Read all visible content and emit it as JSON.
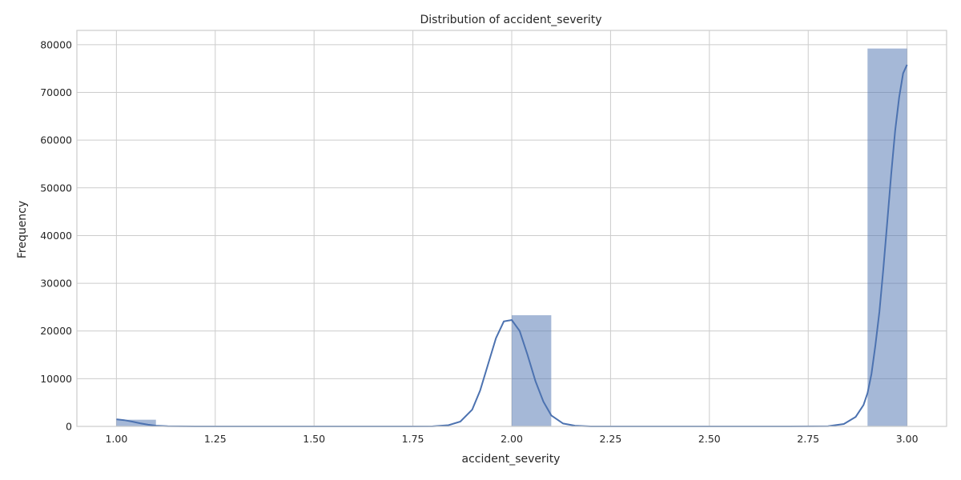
{
  "chart_data": {
    "type": "bar",
    "title": "Distribution of accident_severity",
    "xlabel": "accident_severity",
    "ylabel": "Frequency",
    "xlim": [
      0.9,
      3.1
    ],
    "ylim": [
      0,
      83000
    ],
    "xticks": [
      1.0,
      1.25,
      1.5,
      1.75,
      2.0,
      2.25,
      2.5,
      2.75,
      3.0
    ],
    "xtick_labels": [
      "1.00",
      "1.25",
      "1.50",
      "1.75",
      "2.00",
      "2.25",
      "2.50",
      "2.75",
      "3.00"
    ],
    "yticks": [
      0,
      10000,
      20000,
      30000,
      40000,
      50000,
      60000,
      70000,
      80000
    ],
    "ytick_labels": [
      "0",
      "10000",
      "20000",
      "30000",
      "40000",
      "50000",
      "60000",
      "70000",
      "80000"
    ],
    "grid": true,
    "bins": [
      {
        "start": 1.0,
        "end": 1.1,
        "count": 1400
      },
      {
        "start": 2.0,
        "end": 2.1,
        "count": 23300
      },
      {
        "start": 2.9,
        "end": 3.0,
        "count": 79200
      }
    ],
    "kde": {
      "x": [
        1.0,
        1.02,
        1.04,
        1.06,
        1.08,
        1.1,
        1.13,
        1.16,
        1.2,
        1.3,
        1.5,
        1.7,
        1.8,
        1.84,
        1.87,
        1.9,
        1.92,
        1.94,
        1.96,
        1.98,
        2.0,
        2.02,
        2.04,
        2.06,
        2.08,
        2.1,
        2.13,
        2.16,
        2.2,
        2.3,
        2.5,
        2.7,
        2.8,
        2.84,
        2.87,
        2.89,
        2.9,
        2.91,
        2.92,
        2.93,
        2.94,
        2.95,
        2.96,
        2.97,
        2.98,
        2.99,
        3.0
      ],
      "y": [
        1500,
        1300,
        1000,
        650,
        350,
        150,
        40,
        10,
        0,
        0,
        0,
        0,
        20,
        250,
        1000,
        3500,
        7500,
        13000,
        18500,
        22000,
        22300,
        20000,
        15000,
        9500,
        5200,
        2300,
        600,
        150,
        0,
        0,
        0,
        0,
        30,
        500,
        2000,
        4500,
        7000,
        11000,
        17000,
        24000,
        33000,
        43000,
        53000,
        62000,
        69000,
        74000,
        75800
      ]
    },
    "colors": {
      "bar": "#4c72b0",
      "line": "#4c72b0"
    }
  }
}
